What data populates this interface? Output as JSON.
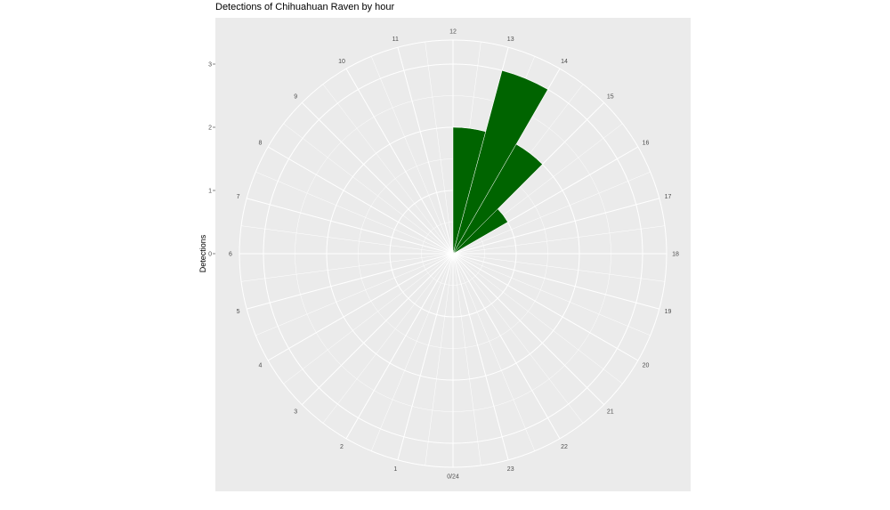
{
  "chart_data": {
    "type": "bar",
    "coord": "polar",
    "title": "Detections of Chihuahuan Raven by hour",
    "xlabel": "",
    "ylabel": "Detections",
    "categories": [
      "0/24",
      "1",
      "2",
      "3",
      "4",
      "5",
      "6",
      "7",
      "8",
      "9",
      "10",
      "11",
      "12",
      "13",
      "14",
      "15",
      "16",
      "17",
      "18",
      "19",
      "20",
      "21",
      "22",
      "23"
    ],
    "values": [
      0,
      0,
      0,
      0,
      0,
      0,
      0,
      0,
      0,
      0,
      0,
      0,
      2,
      3,
      2,
      1,
      0,
      0,
      0,
      0,
      0,
      0,
      0,
      0
    ],
    "ylim": [
      0,
      3
    ],
    "yticks": [
      "0",
      "1",
      "2",
      "3"
    ],
    "grid": true,
    "bar_color": "#006400",
    "panel_color": "#EBEBEB"
  }
}
